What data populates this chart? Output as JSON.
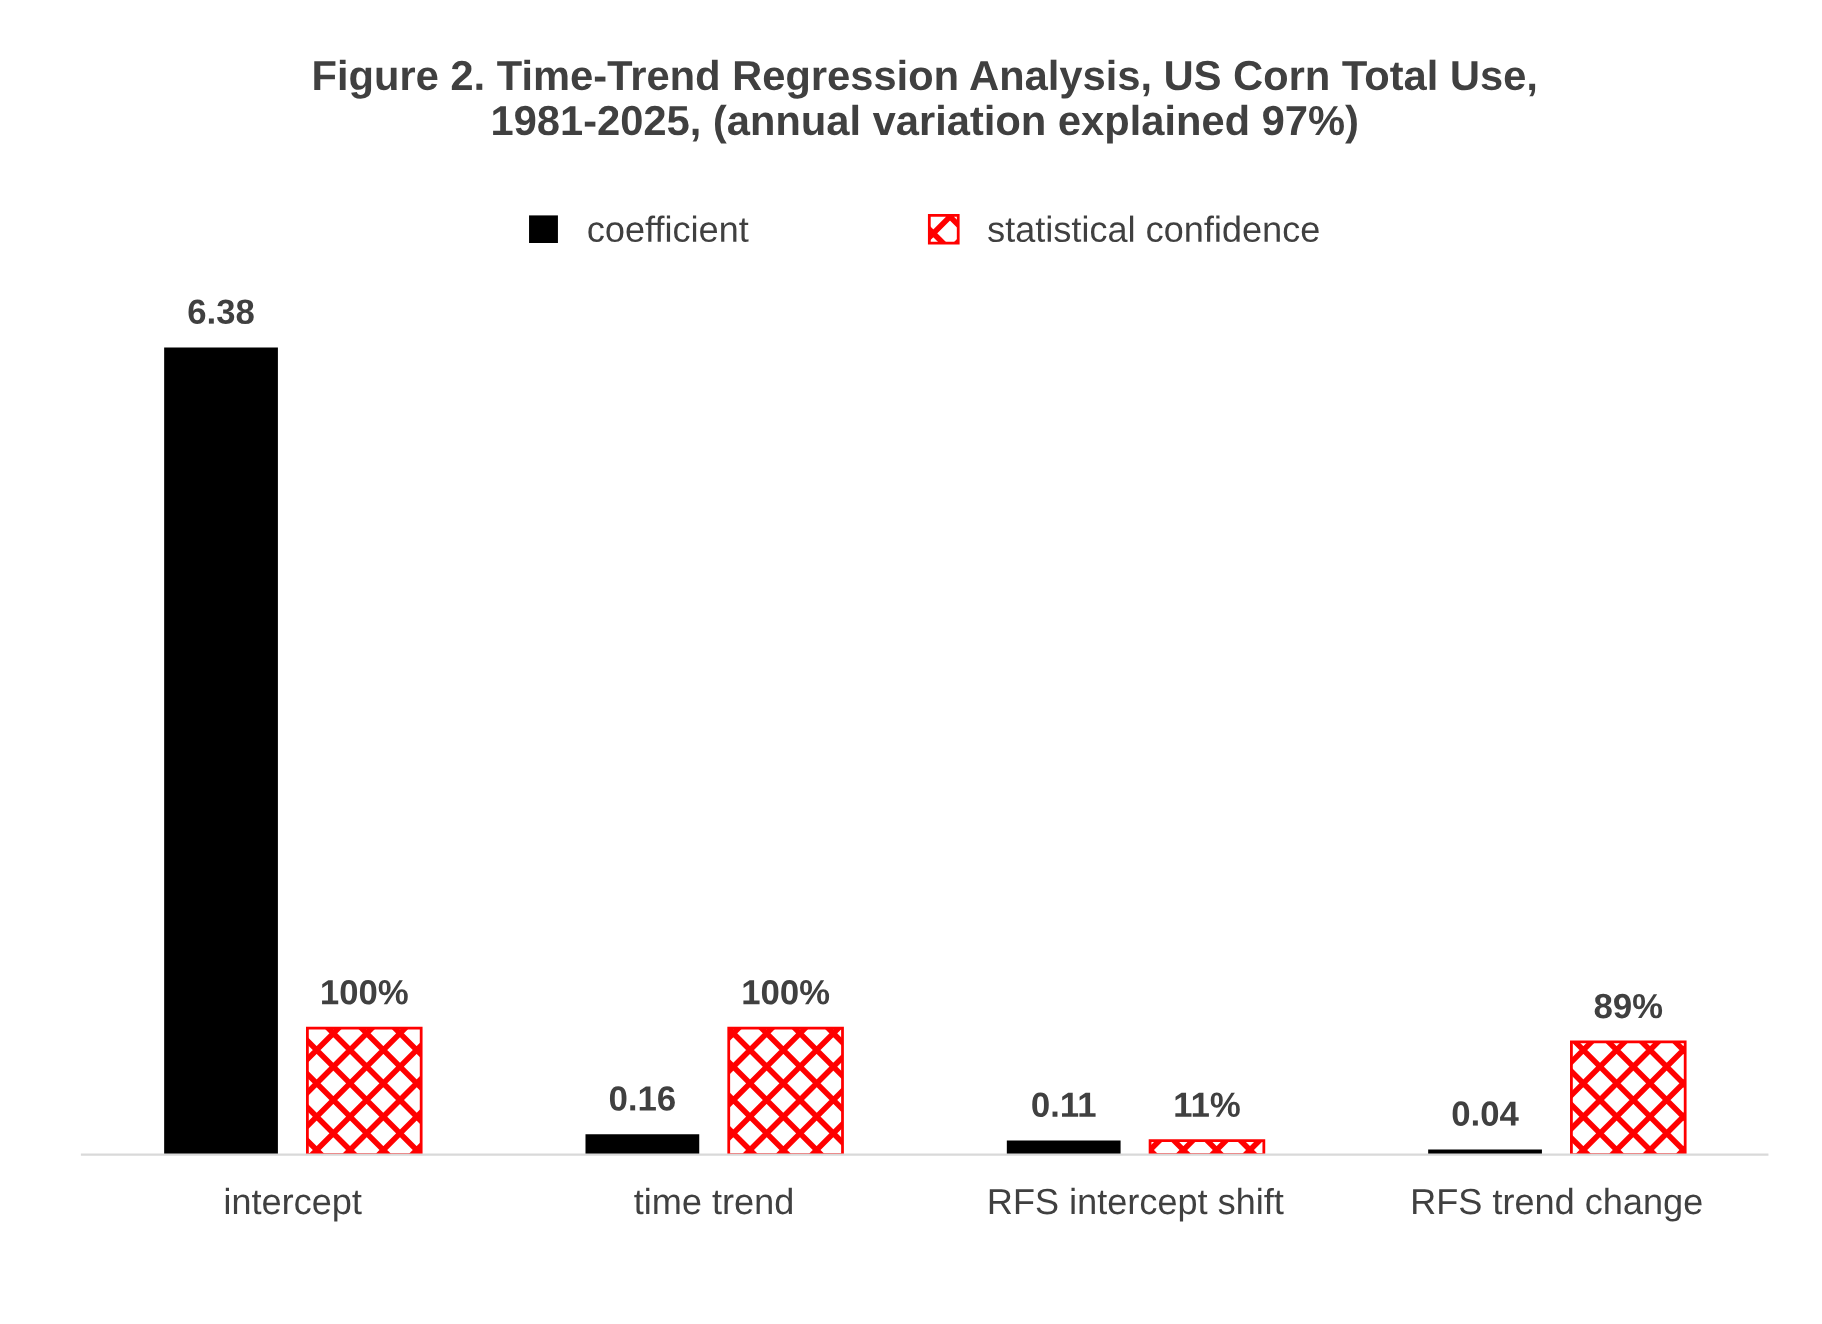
{
  "chart_data": {
    "type": "bar",
    "title": "Figure 2. Time-Trend Regression Analysis, US Corn Total Use,\n1981-2025, (annual variation explained 97%)",
    "categories": [
      "intercept",
      "time trend",
      "RFS intercept shift",
      "RFS trend change"
    ],
    "series": [
      {
        "name": "coefficient",
        "color": "#000000",
        "values": [
          6.38,
          0.16,
          0.11,
          0.04
        ],
        "value_labels": [
          "6.38",
          "0.16",
          "0.11",
          "0.04"
        ]
      },
      {
        "name": "statistical confidence",
        "color": "#ff0000",
        "values": [
          1.0,
          1.0,
          0.11,
          0.89
        ],
        "value_labels": [
          "100%",
          "100%",
          "11%",
          "89%"
        ]
      }
    ],
    "legend": "top",
    "grid": false
  }
}
